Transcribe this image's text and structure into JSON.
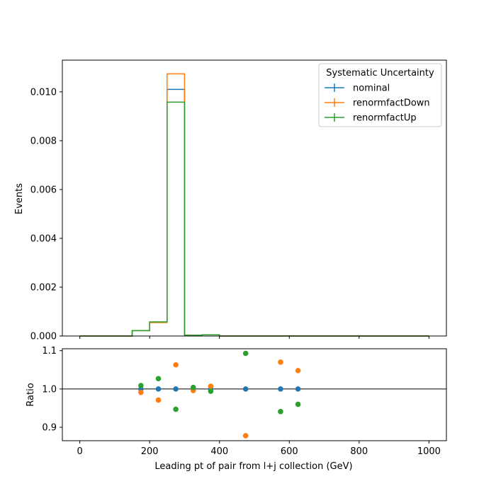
{
  "chart_data": {
    "type": "step",
    "xlabel": "Leading pt of pair from l+j collection (GeV)",
    "main_panel": {
      "ylabel": "Events",
      "xlim": [
        -50,
        1050
      ],
      "ylim": [
        0,
        0.0113
      ],
      "yticks": [
        "0.000",
        "0.002",
        "0.004",
        "0.006",
        "0.008",
        "0.010"
      ],
      "legend": {
        "title": "Systematic Uncertainty",
        "position": "top-right"
      },
      "bin_edges": [
        0,
        50,
        100,
        150,
        200,
        250,
        300,
        350,
        400,
        450,
        500,
        550,
        600,
        650,
        700,
        750,
        800,
        850,
        900,
        950,
        1000
      ],
      "series": [
        {
          "name": "nominal",
          "color": "#1f77b4",
          "values": [
            0,
            0,
            0,
            0.00022,
            0.00057,
            0.0101,
            3e-05,
            5e-05,
            0,
            0,
            0,
            0,
            0,
            0,
            0,
            0,
            0,
            0,
            0,
            0
          ]
        },
        {
          "name": "renormfactDown",
          "color": "#ff7f0e",
          "values": [
            0,
            0,
            0,
            0.00022,
            0.00055,
            0.01074,
            3e-05,
            5e-05,
            0,
            0,
            0,
            0,
            0,
            0,
            0,
            0,
            0,
            0,
            0,
            0
          ]
        },
        {
          "name": "renormfactUp",
          "color": "#2ca02c",
          "values": [
            0,
            0,
            0,
            0.00022,
            0.00058,
            0.00958,
            3e-05,
            5e-05,
            0,
            0,
            0,
            0,
            0,
            0,
            0,
            0,
            0,
            0,
            0,
            0
          ]
        }
      ]
    },
    "ratio_panel": {
      "ylabel": "Ratio",
      "ylim": [
        0.865,
        1.105
      ],
      "yticks": [
        "0.9",
        "1.0",
        "1.1"
      ],
      "reference_line": 1.0,
      "xticks": [
        "0",
        "200",
        "400",
        "600",
        "800",
        "1000"
      ],
      "series": [
        {
          "name": "nominal",
          "color": "#1f77b4",
          "points": [
            [
              175,
              1.0
            ],
            [
              225,
              1.0
            ],
            [
              275,
              1.0
            ],
            [
              325,
              1.0
            ],
            [
              375,
              1.0
            ],
            [
              475,
              1.0
            ],
            [
              575,
              1.0
            ],
            [
              625,
              1.0
            ]
          ]
        },
        {
          "name": "renormfactDown",
          "color": "#ff7f0e",
          "points": [
            [
              175,
              0.991
            ],
            [
              225,
              0.971
            ],
            [
              275,
              1.063
            ],
            [
              325,
              0.996
            ],
            [
              375,
              1.007
            ],
            [
              475,
              0.878
            ],
            [
              575,
              1.07
            ],
            [
              625,
              1.048
            ]
          ]
        },
        {
          "name": "renormfactUp",
          "color": "#2ca02c",
          "points": [
            [
              175,
              1.009
            ],
            [
              225,
              1.027
            ],
            [
              275,
              0.947
            ],
            [
              325,
              1.004
            ],
            [
              375,
              0.994
            ],
            [
              475,
              1.093
            ],
            [
              575,
              0.941
            ],
            [
              625,
              0.96
            ]
          ]
        }
      ]
    }
  }
}
